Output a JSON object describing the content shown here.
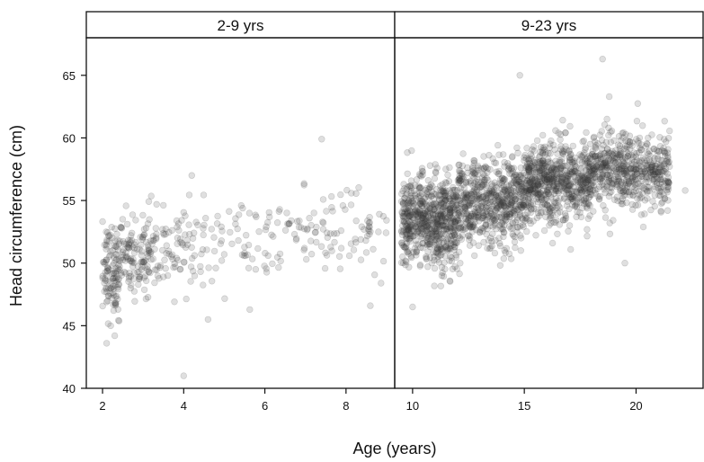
{
  "chart_data": {
    "type": "scatter",
    "ylabel": "Head circumference (cm)",
    "xlabel": "Age (years)",
    "ylim": [
      40,
      68
    ],
    "y_ticks": [
      40,
      45,
      50,
      55,
      60,
      65
    ],
    "point_color": "#3a3a3a",
    "panels": [
      {
        "strip": "2-9 yrs",
        "xlim": [
          1.6,
          9.2
        ],
        "x_ticks": [
          2,
          4,
          6,
          8
        ],
        "clusters": [
          {
            "x_range": [
              2.0,
              2.4
            ],
            "y_mean": 49.5,
            "y_sd": 1.8,
            "n": 110
          },
          {
            "x_range": [
              2.4,
              3.2
            ],
            "y_mean": 50.6,
            "y_sd": 1.5,
            "n": 130
          },
          {
            "x_range": [
              3.2,
              4.3
            ],
            "y_mean": 51.0,
            "y_sd": 1.6,
            "n": 80
          },
          {
            "x_range": [
              4.3,
              6.5
            ],
            "y_mean": 51.5,
            "y_sd": 1.8,
            "n": 75
          },
          {
            "x_range": [
              6.5,
              9.0
            ],
            "y_mean": 52.5,
            "y_sd": 1.6,
            "n": 95
          }
        ],
        "outliers": [
          {
            "x": 4.0,
            "y": 41.0
          },
          {
            "x": 2.1,
            "y": 43.6
          },
          {
            "x": 2.3,
            "y": 44.2
          },
          {
            "x": 2.2,
            "y": 45.0
          },
          {
            "x": 4.2,
            "y": 57.0
          },
          {
            "x": 7.4,
            "y": 59.9
          },
          {
            "x": 8.6,
            "y": 46.6
          },
          {
            "x": 4.6,
            "y": 45.5
          }
        ]
      },
      {
        "strip": "9-23 yrs",
        "xlim": [
          9.2,
          23.0
        ],
        "x_ticks": [
          10,
          15,
          20
        ],
        "clusters": [
          {
            "x_range": [
              9.5,
              12.0
            ],
            "y_mean": 53.3,
            "y_sd": 1.8,
            "n": 650
          },
          {
            "x_range": [
              12.0,
              15.0
            ],
            "y_mean": 54.8,
            "y_sd": 1.7,
            "n": 600
          },
          {
            "x_range": [
              15.0,
              18.0
            ],
            "y_mean": 56.4,
            "y_sd": 1.6,
            "n": 650
          },
          {
            "x_range": [
              18.0,
              21.5
            ],
            "y_mean": 57.4,
            "y_sd": 1.5,
            "n": 550
          }
        ],
        "outliers": [
          {
            "x": 18.5,
            "y": 66.3
          },
          {
            "x": 14.8,
            "y": 65.0
          },
          {
            "x": 18.8,
            "y": 63.3
          },
          {
            "x": 10.0,
            "y": 46.5
          },
          {
            "x": 19.5,
            "y": 50.0
          },
          {
            "x": 22.2,
            "y": 55.8
          }
        ]
      }
    ]
  }
}
